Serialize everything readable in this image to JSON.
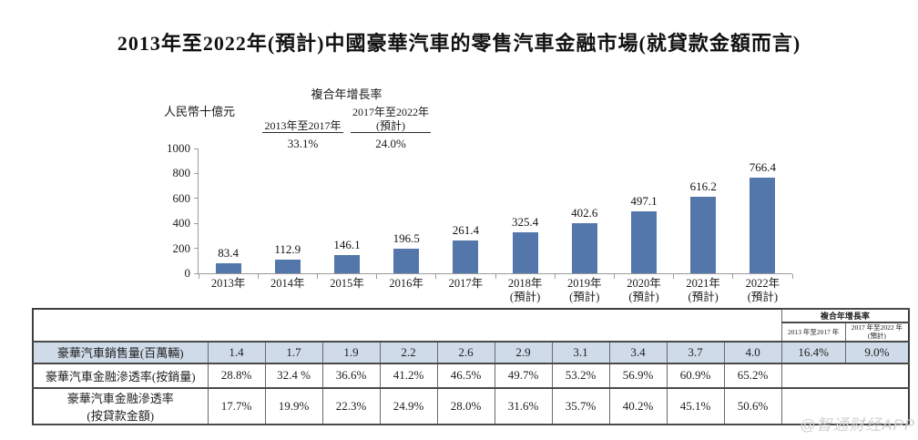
{
  "title": "2013年至2022年(預計)中國豪華汽車的零售汽車金融市場(就貸款金額而言)",
  "watermark": "@智通财经APP",
  "chart_data": {
    "type": "bar",
    "title": "2013年至2022年(預計)中國豪華汽車的零售汽車金融市場(就貸款金額而言)",
    "ylabel": "人民幣十億元",
    "xlabel": "",
    "ylim": [
      0,
      1000
    ],
    "yticks": [
      0,
      200,
      400,
      600,
      800,
      1000
    ],
    "grid": "off",
    "legend": "none",
    "bar_color": "#5377ab",
    "categories": [
      "2013年",
      "2014年",
      "2015年",
      "2016年",
      "2017年",
      "2018年(預計)",
      "2019年(預計)",
      "2020年(預計)",
      "2021年(預計)",
      "2022年(預計)"
    ],
    "category_lines": [
      [
        "2013年"
      ],
      [
        "2014年"
      ],
      [
        "2015年"
      ],
      [
        "2016年"
      ],
      [
        "2017年"
      ],
      [
        "2018年",
        "(預計)"
      ],
      [
        "2019年",
        "(預計)"
      ],
      [
        "2020年",
        "(預計)"
      ],
      [
        "2021年",
        "(預計)"
      ],
      [
        "2022年",
        "(預計)"
      ]
    ],
    "values": [
      83.4,
      112.9,
      146.1,
      196.5,
      261.4,
      325.4,
      402.6,
      497.1,
      616.2,
      766.4
    ],
    "cagr_annotation": {
      "title": "複合年增長率",
      "columns": [
        {
          "label_lines": [
            "2013年至2017年"
          ],
          "value": "33.1%"
        },
        {
          "label_lines": [
            "2017年至2022年",
            "(預計)"
          ],
          "value": "24.0%"
        }
      ]
    }
  },
  "table": {
    "cagr_header": {
      "title": "複合年增長率",
      "columns": [
        {
          "lines": [
            "2013 年至2017 年"
          ]
        },
        {
          "lines": [
            "2017 年至2022 年",
            "(預計)"
          ]
        }
      ]
    },
    "rows": [
      {
        "label_lines": [
          "豪華汽車銷售量(百萬輛)"
        ],
        "values": [
          "1.4",
          "1.7",
          "1.9",
          "2.2",
          "2.6",
          "2.9",
          "3.1",
          "3.4",
          "3.7",
          "4.0"
        ],
        "cagr_values": [
          "16.4%",
          "9.0%"
        ],
        "highlight": true
      },
      {
        "label_lines": [
          "豪華汽車金融滲透率(按銷量)"
        ],
        "values": [
          "28.8%",
          "32.4 %",
          "36.6%",
          "41.2%",
          "46.5%",
          "49.7%",
          "53.2%",
          "56.9%",
          "60.9%",
          "65.2%"
        ],
        "cagr_values": null,
        "highlight": false
      },
      {
        "label_lines": [
          "豪華汽車金融滲透率",
          "(按貸款金額)"
        ],
        "values": [
          "17.7%",
          "19.9%",
          "22.3%",
          "24.9%",
          "28.0%",
          "31.6%",
          "35.7%",
          "40.2%",
          "45.1%",
          "50.6%"
        ],
        "cagr_values": null,
        "highlight": false
      }
    ]
  }
}
